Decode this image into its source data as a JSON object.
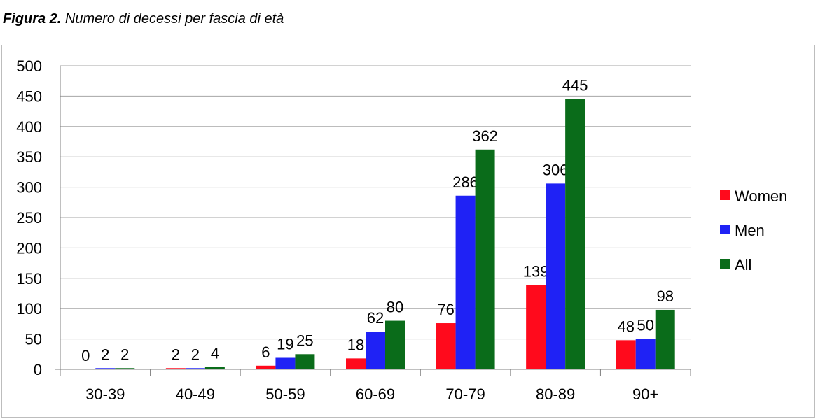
{
  "caption": {
    "lead": "Figura 2.",
    "text": "Numero di decessi per fascia di età"
  },
  "chart_data": {
    "type": "bar",
    "categories": [
      "30-39",
      "40-49",
      "50-59",
      "60-69",
      "70-79",
      "80-89",
      "90+"
    ],
    "series": [
      {
        "name": "Women",
        "color": "#ff0a1c",
        "values": [
          0,
          2,
          6,
          18,
          76,
          139,
          48
        ]
      },
      {
        "name": "Men",
        "color": "#1f22f5",
        "values": [
          2,
          2,
          19,
          62,
          286,
          306,
          50
        ]
      },
      {
        "name": "All",
        "color": "#0a6c1a",
        "values": [
          2,
          4,
          25,
          80,
          362,
          445,
          98
        ]
      }
    ],
    "title": "",
    "xlabel": "",
    "ylabel": "",
    "ylim": [
      0,
      500
    ],
    "yticks": [
      0,
      50,
      100,
      150,
      200,
      250,
      300,
      350,
      400,
      450,
      500
    ],
    "grid": true,
    "legend_position": "right"
  }
}
